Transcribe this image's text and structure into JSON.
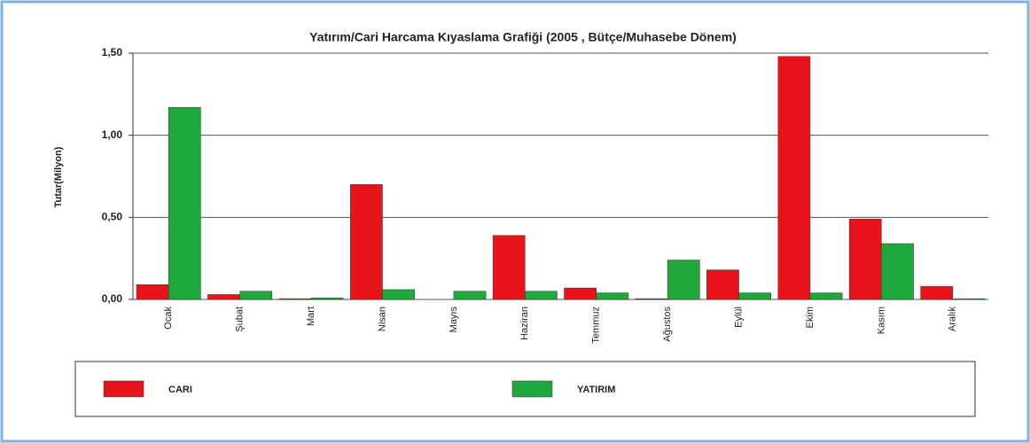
{
  "chart_data": {
    "type": "bar",
    "title": "Yatırım/Cari Harcama Kıyaslama Grafiği (2005 , Bütçe/Muhasebe Dönem)",
    "y_label": "Tutar(Milyon)",
    "categories": [
      "Ocak",
      "Şubat",
      "Mart",
      "Nisan",
      "Mayıs",
      "Haziran",
      "Temmuz",
      "Ağustos",
      "Eylül",
      "Ekim",
      "Kasım",
      "Aralık"
    ],
    "series": [
      {
        "name": "CARI",
        "color": "#e8141c",
        "values": [
          0.09,
          0.03,
          0.005,
          0.7,
          0,
          0.39,
          0.07,
          0.005,
          0.18,
          1.48,
          0.49,
          0.08
        ]
      },
      {
        "name": "YATIRIM",
        "color": "#1fa83c",
        "values": [
          1.17,
          0.05,
          0.01,
          0.06,
          0.05,
          0.05,
          0.04,
          0.24,
          0.04,
          0.04,
          0.34,
          0.005
        ]
      }
    ],
    "ylim": [
      0,
      1.5
    ],
    "yticks": [
      {
        "value": 0,
        "label": "0,00"
      },
      {
        "value": 0.5,
        "label": "0,50"
      },
      {
        "value": 1,
        "label": "1,00"
      },
      {
        "value": 1.5,
        "label": "1,50"
      }
    ],
    "grid": true,
    "legend": "bottom"
  }
}
